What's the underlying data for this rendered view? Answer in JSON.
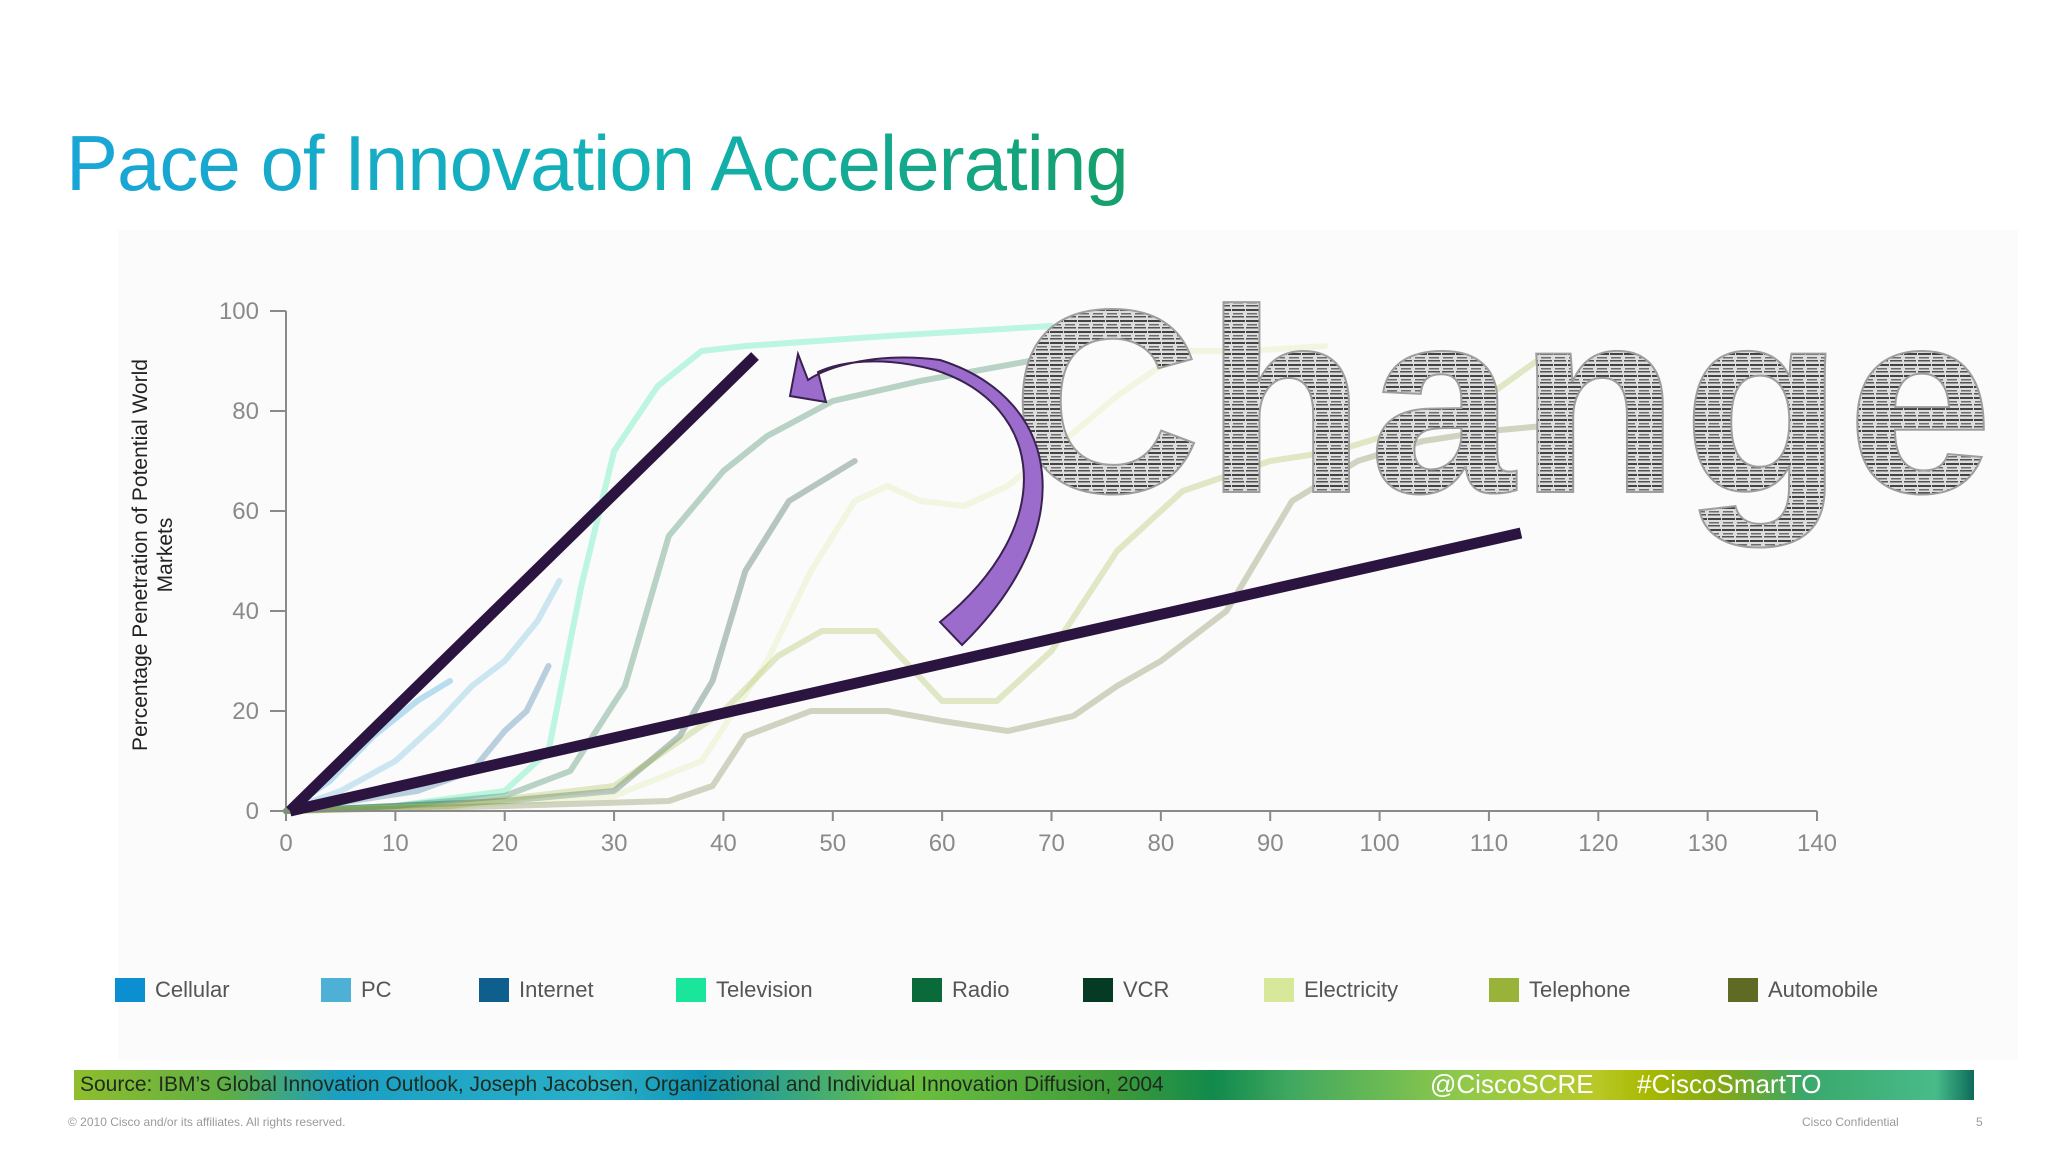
{
  "slide": {
    "title": "Pace of Innovation Accelerating",
    "source": "Source: IBM’s Global Innovation Outlook, Joseph Jacobsen, Organizational and Individual Innovation Diffusion, 2004",
    "twitter_handle": "@CiscoSCRE",
    "hashtag": "#CiscoSmartTO",
    "copyright": "© 2010 Cisco and/or its affiliates. All rights reserved.",
    "confidential": "Cisco Confidential",
    "page_number": "5",
    "overlay_word": "Change",
    "arrow_color": "#9b6ccc",
    "trend_line_color": "#2b1540"
  },
  "chart_data": {
    "type": "line",
    "title": "",
    "ylabel": "Percentage Penetration of Potential World Markets",
    "xlabel": "",
    "xlim": [
      0,
      140
    ],
    "ylim": [
      0,
      100
    ],
    "x_ticks": [
      0,
      10,
      20,
      30,
      40,
      50,
      60,
      70,
      80,
      90,
      100,
      110,
      120,
      130,
      140
    ],
    "y_ticks": [
      0,
      20,
      40,
      60,
      80,
      100
    ],
    "grid": false,
    "legend_position": "bottom",
    "series": [
      {
        "name": "Cellular",
        "color": "#0b8fd0",
        "x": [
          0,
          4,
          8,
          12,
          15
        ],
        "y": [
          0,
          6,
          15,
          22,
          26
        ]
      },
      {
        "name": "PC",
        "color": "#4fb0d6",
        "x": [
          0,
          5,
          10,
          14,
          17,
          20,
          23,
          25
        ],
        "y": [
          0,
          4,
          10,
          18,
          25,
          30,
          38,
          46
        ]
      },
      {
        "name": "Internet",
        "color": "#0e5f8e",
        "x": [
          0,
          6,
          12,
          17,
          20,
          22,
          24
        ],
        "y": [
          0,
          2,
          4,
          8,
          16,
          20,
          29
        ]
      },
      {
        "name": "Television",
        "color": "#19e69a",
        "x": [
          0,
          10,
          20,
          24,
          27,
          30,
          34,
          38,
          42,
          55,
          70
        ],
        "y": [
          0,
          1,
          4,
          12,
          45,
          72,
          85,
          92,
          93,
          95,
          97
        ]
      },
      {
        "name": "Radio",
        "color": "#0b6a3a",
        "x": [
          0,
          10,
          20,
          26,
          31,
          35,
          40,
          44,
          50,
          58,
          68
        ],
        "y": [
          0,
          1,
          3,
          8,
          25,
          55,
          68,
          75,
          82,
          86,
          90
        ]
      },
      {
        "name": "VCR",
        "color": "#053a25",
        "x": [
          0,
          10,
          20,
          30,
          36,
          39,
          42,
          46,
          52
        ],
        "y": [
          0,
          1,
          2,
          4,
          15,
          26,
          48,
          62,
          70
        ]
      },
      {
        "name": "Electricity",
        "color": "#d8e89a",
        "x": [
          0,
          15,
          30,
          38,
          44,
          48,
          52,
          55,
          58,
          62,
          66,
          70,
          76,
          82,
          88,
          95
        ],
        "y": [
          0,
          1,
          3,
          10,
          30,
          48,
          62,
          65,
          62,
          61,
          65,
          72,
          83,
          92,
          92,
          93
        ]
      },
      {
        "name": "Telephone",
        "color": "#98b23a",
        "x": [
          0,
          15,
          30,
          40,
          45,
          49,
          54,
          60,
          65,
          70,
          76,
          82,
          90,
          96,
          102,
          108,
          115
        ],
        "y": [
          0,
          1,
          5,
          20,
          31,
          36,
          36,
          22,
          22,
          32,
          52,
          64,
          70,
          72,
          76,
          80,
          91
        ]
      },
      {
        "name": "Automobile",
        "color": "#5f6b24",
        "x": [
          0,
          20,
          35,
          39,
          42,
          48,
          55,
          60,
          66,
          72,
          76,
          80,
          86,
          92,
          98,
          104,
          110,
          115
        ],
        "y": [
          0,
          1,
          2,
          5,
          15,
          20,
          20,
          18,
          16,
          19,
          25,
          30,
          40,
          62,
          70,
          74,
          76,
          77
        ]
      }
    ]
  }
}
